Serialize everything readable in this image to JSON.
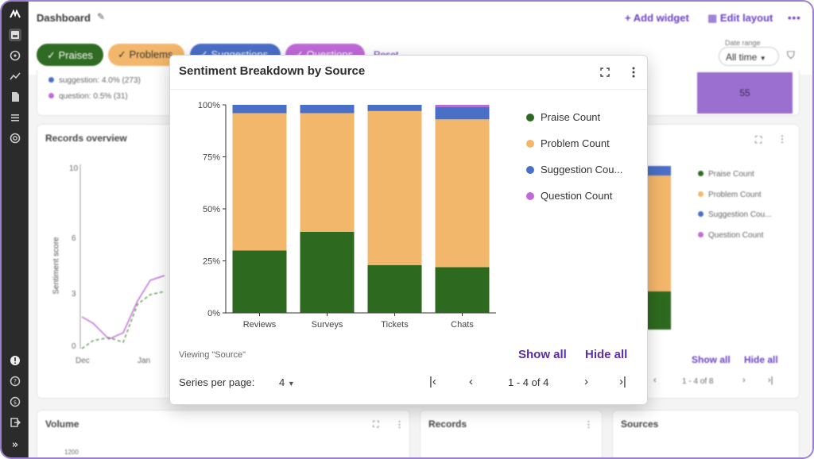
{
  "header": {
    "title": "Dashboard",
    "add_widget": "Add widget",
    "edit_layout": "Edit layout"
  },
  "filters": {
    "chips": [
      "Praises",
      "Problems",
      "Suggestions",
      "Questions"
    ],
    "reset": "Reset",
    "date_range_label": "Date range",
    "date_range_value": "All time"
  },
  "summary_legend": [
    {
      "label": "suggestion: 4.0% (273)",
      "color": "#4a6fc7"
    },
    {
      "label": "question: 0.5% (31)",
      "color": "#c06ad8"
    }
  ],
  "summary_value": "55",
  "records_overview": {
    "title": "Records overview",
    "ylabel": "Sentiment score",
    "yticks": [
      "10",
      "6",
      "3",
      "0"
    ],
    "xticks": [
      "Dec",
      "Jan"
    ]
  },
  "background_breakdown": {
    "legend": [
      "Praise Count",
      "Problem Count",
      "Suggestion Cou...",
      "Question Count"
    ],
    "show_all": "Show all",
    "hide_all": "Hide all",
    "page_info": "1 - 4 of 8"
  },
  "bottom_cards": {
    "volume": "Volume",
    "volume_tick": "1200",
    "records": "Records",
    "sources": "Sources"
  },
  "dialog": {
    "title": "Sentiment Breakdown by Source",
    "viewing": "Viewing \"Source\"",
    "show_all": "Show all",
    "hide_all": "Hide all",
    "series_per_page_label": "Series per page:",
    "series_per_page_value": "4",
    "page_info": "1 - 4 of 4"
  },
  "colors": {
    "praise": "#2d6a1f",
    "problem": "#f3b76b",
    "suggestion": "#4a6fc7",
    "question": "#c06ad8",
    "accent": "#5b2ea6"
  },
  "chart_data": {
    "type": "bar",
    "stacked": true,
    "categories": [
      "Reviews",
      "Surveys",
      "Tickets",
      "Chats"
    ],
    "series": [
      {
        "name": "Praise Count",
        "values": [
          30,
          39,
          23,
          22
        ]
      },
      {
        "name": "Problem Count",
        "values": [
          66,
          57,
          74,
          71
        ]
      },
      {
        "name": "Suggestion Count",
        "values": [
          4,
          4,
          3,
          6
        ]
      },
      {
        "name": "Question Count",
        "values": [
          0,
          0,
          0,
          1
        ]
      }
    ],
    "ylim": [
      0,
      100
    ],
    "yticks": [
      "0%",
      "25%",
      "50%",
      "75%",
      "100%"
    ],
    "legend": [
      "Praise Count",
      "Problem Count",
      "Suggestion Cou...",
      "Question Count"
    ],
    "legend_position": "right"
  }
}
